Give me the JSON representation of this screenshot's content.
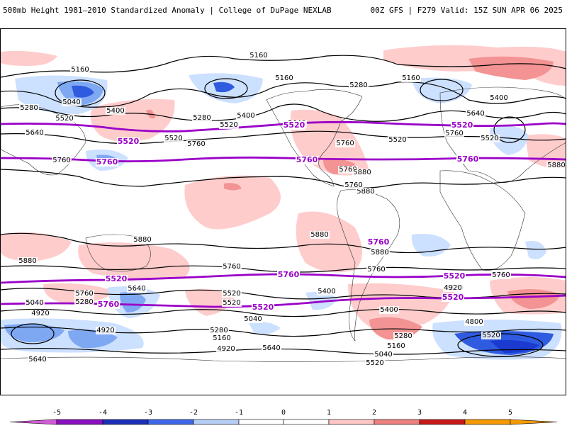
{
  "header": {
    "title_left": "500mb Height 1981–2010 Standardized Anomaly | College of DuPage NEXLAB",
    "title_right": "00Z GFS | F279 Valid: 15Z SUN APR 06 2025"
  },
  "colors": {
    "anom_pos_1": "#ffcccc",
    "anom_pos_2": "#f39393",
    "anom_pos_3": "#e05050",
    "anom_neg_1": "#cce0ff",
    "anom_neg_2": "#7fa8f2",
    "anom_neg_3": "#2f5be0",
    "anom_neg_4": "#1a3ad0",
    "highlight_contour": "#9a00c8",
    "height_contour": "#000000"
  },
  "colorbar": {
    "tick_labels": [
      "-5",
      "-4",
      "-3",
      "-2",
      "-1",
      "0",
      "1",
      "2",
      "3",
      "4",
      "5"
    ],
    "segment_colors": [
      "#d45ad6",
      "#8a10c0",
      "#1c2fb8",
      "#3d68e8",
      "#b6cdf5",
      "#ffffff",
      "#ffffff",
      "#ffc6c6",
      "#ec8080",
      "#c81818",
      "#f59a00"
    ]
  },
  "contour_labels": [
    "5160",
    "5040",
    "5280",
    "5400",
    "5520",
    "5640",
    "5760",
    "5880"
  ],
  "highlighted_contours": [
    "5520",
    "5760"
  ],
  "map_labels": [
    "5160",
    "5040",
    "5280",
    "5520",
    "5400",
    "5640",
    "5520",
    "5760",
    "5760",
    "5160",
    "5160",
    "5400",
    "5280",
    "5520",
    "5640",
    "5760",
    "5520",
    "5760",
    "5760",
    "5880",
    "5880",
    "5160",
    "5280",
    "5400",
    "5640",
    "5520",
    "5760",
    "5520",
    "5880",
    "5880",
    "5880",
    "5880",
    "5880",
    "5760",
    "5760",
    "5760",
    "5760",
    "5520",
    "5640",
    "5280",
    "5040",
    "4920",
    "4920",
    "5640",
    "5520",
    "5400",
    "5280",
    "5160",
    "5040",
    "4920",
    "5640",
    "5400",
    "5280",
    "5160",
    "5040",
    "5520",
    "4920",
    "4800",
    "5520"
  ],
  "purple_labels": [
    "5520",
    "5760",
    "5520",
    "5760",
    "5520",
    "5760",
    "5520",
    "5760",
    "5520",
    "5760",
    "5520",
    "5520",
    "5760"
  ]
}
